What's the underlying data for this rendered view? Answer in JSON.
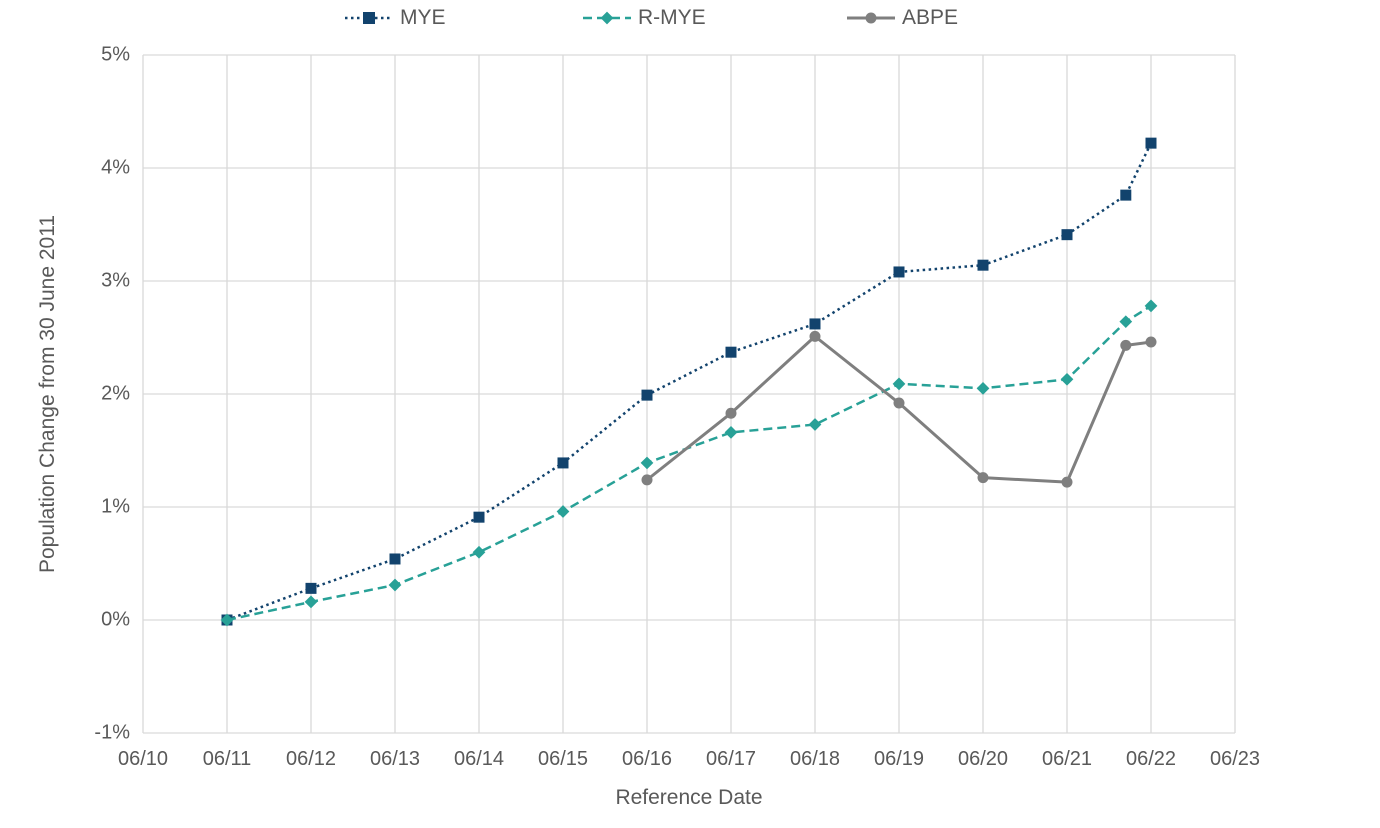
{
  "chart_data": {
    "type": "line",
    "title": "",
    "xlabel": "Reference Date",
    "ylabel": "Population Change from 30 June 2011",
    "x_ticks": [
      "06/10",
      "06/11",
      "06/12",
      "06/13",
      "06/14",
      "06/15",
      "06/16",
      "06/17",
      "06/18",
      "06/19",
      "06/20",
      "06/21",
      "06/22",
      "06/23"
    ],
    "y_ticks": [
      "5%",
      "4%",
      "3%",
      "2%",
      "1%",
      "0%",
      "-1%"
    ],
    "ylim": [
      -1,
      5
    ],
    "grid": true,
    "legend_position": "top",
    "grid_color": "#D9D9D9",
    "text_color": "#595959",
    "series": [
      {
        "name": "MYE",
        "color": "#12436D",
        "line_style": "dotted",
        "line_width": 2.5,
        "marker": "square",
        "points": [
          {
            "x": "06/11",
            "xi": 1,
            "y": 0.0
          },
          {
            "x": "06/12",
            "xi": 2,
            "y": 0.28
          },
          {
            "x": "06/13",
            "xi": 3,
            "y": 0.54
          },
          {
            "x": "06/14",
            "xi": 4,
            "y": 0.91
          },
          {
            "x": "06/15",
            "xi": 5,
            "y": 1.39
          },
          {
            "x": "06/16",
            "xi": 6,
            "y": 1.99
          },
          {
            "x": "06/17",
            "xi": 7,
            "y": 2.37
          },
          {
            "x": "06/18",
            "xi": 8,
            "y": 2.62
          },
          {
            "x": "06/19",
            "xi": 9,
            "y": 3.08
          },
          {
            "x": "06/20",
            "xi": 10,
            "y": 3.14
          },
          {
            "x": "06/21",
            "xi": 11,
            "y": 3.41
          },
          {
            "xi": 11.7,
            "y": 3.76
          },
          {
            "x": "06/22",
            "xi": 12,
            "y": 4.22
          }
        ]
      },
      {
        "name": "R-MYE",
        "color": "#28A197",
        "line_style": "dashed",
        "line_width": 2.5,
        "marker": "diamond",
        "points": [
          {
            "x": "06/11",
            "xi": 1,
            "y": 0.0
          },
          {
            "x": "06/12",
            "xi": 2,
            "y": 0.16
          },
          {
            "x": "06/13",
            "xi": 3,
            "y": 0.31
          },
          {
            "x": "06/14",
            "xi": 4,
            "y": 0.6
          },
          {
            "x": "06/15",
            "xi": 5,
            "y": 0.96
          },
          {
            "x": "06/16",
            "xi": 6,
            "y": 1.39
          },
          {
            "x": "06/17",
            "xi": 7,
            "y": 1.66
          },
          {
            "x": "06/18",
            "xi": 8,
            "y": 1.73
          },
          {
            "x": "06/19",
            "xi": 9,
            "y": 2.09
          },
          {
            "x": "06/20",
            "xi": 10,
            "y": 2.05
          },
          {
            "x": "06/21",
            "xi": 11,
            "y": 2.13
          },
          {
            "xi": 11.7,
            "y": 2.64
          },
          {
            "x": "06/22",
            "xi": 12,
            "y": 2.78
          }
        ]
      },
      {
        "name": "ABPE",
        "color": "#7F7F7F",
        "line_style": "solid",
        "line_width": 3,
        "marker": "circle",
        "points": [
          {
            "x": "06/16",
            "xi": 6,
            "y": 1.24
          },
          {
            "x": "06/17",
            "xi": 7,
            "y": 1.83
          },
          {
            "x": "06/18",
            "xi": 8,
            "y": 2.51
          },
          {
            "x": "06/19",
            "xi": 9,
            "y": 1.92
          },
          {
            "x": "06/20",
            "xi": 10,
            "y": 1.26
          },
          {
            "x": "06/21",
            "xi": 11,
            "y": 1.22
          },
          {
            "xi": 11.7,
            "y": 2.43
          },
          {
            "x": "06/22",
            "xi": 12,
            "y": 2.46
          }
        ]
      }
    ]
  }
}
